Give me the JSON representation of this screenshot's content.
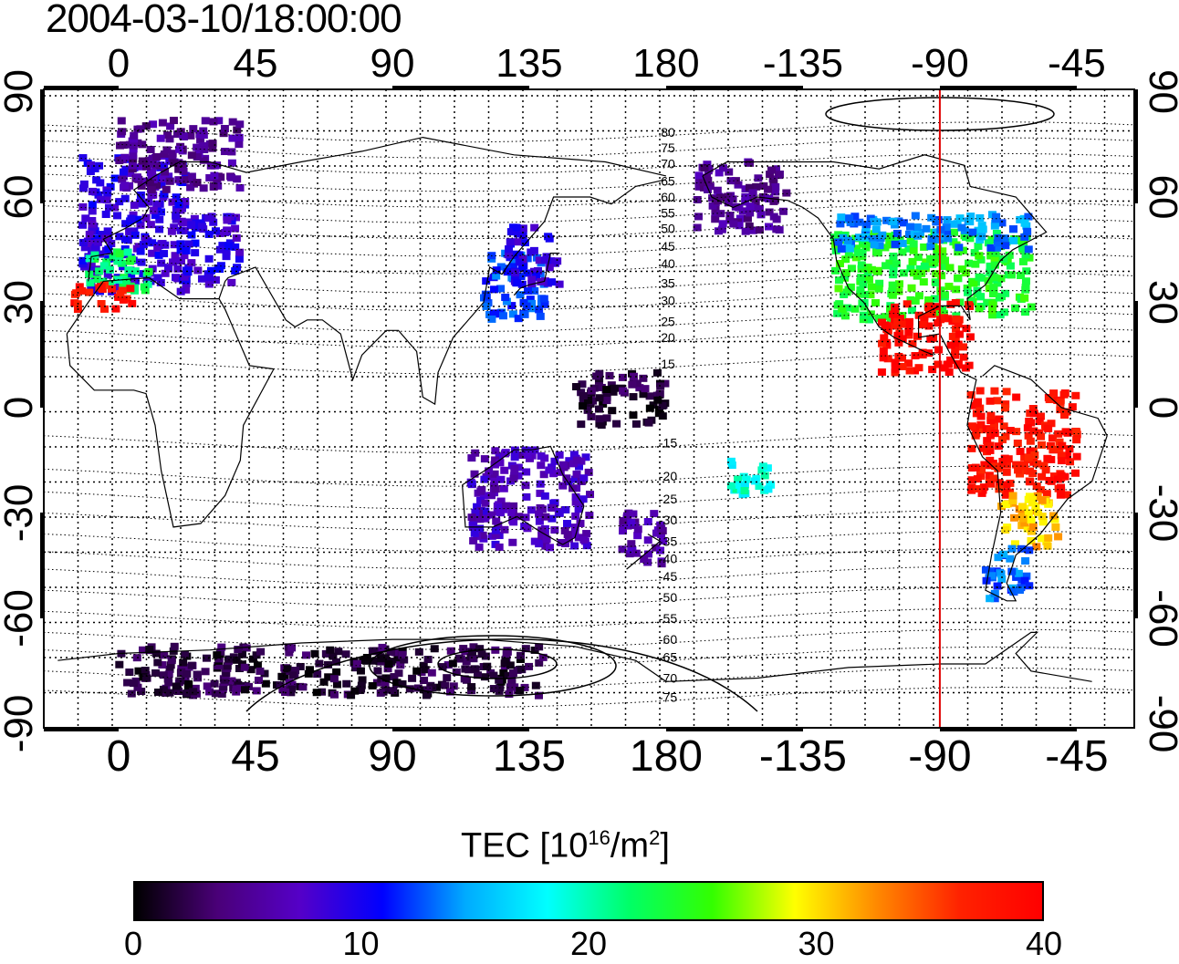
{
  "timestamp": "2004-03-10/18:00:00",
  "map": {
    "projection": "equirectangular",
    "central_longitude": 155,
    "lat_range": [
      -90,
      90
    ],
    "top_lon_labels": [
      "0",
      "45",
      "90",
      "135",
      "180",
      "-135",
      "-90",
      "-45"
    ],
    "bottom_lon_labels": [
      "0",
      "45",
      "90",
      "135",
      "180",
      "-135",
      "-90",
      "-45"
    ],
    "lon_tick_values": [
      0,
      45,
      90,
      135,
      180,
      225,
      270,
      315
    ],
    "lat_labels": [
      "90",
      "60",
      "30",
      "0",
      "-30",
      "-60",
      "-90"
    ],
    "lat_tick_values": [
      90,
      60,
      30,
      0,
      -30,
      -60,
      -90
    ],
    "meridian_line_lon": -90,
    "meridian_line_color": "#e00000",
    "contour_labels": [
      "80",
      "75",
      "70",
      "65",
      "60",
      "55",
      "50",
      "45",
      "40",
      "35",
      "30",
      "25",
      "20",
      "15",
      "-15",
      "-20",
      "-25",
      "-30",
      "-35",
      "-40",
      "-45",
      "-50",
      "-55",
      "-60",
      "-65",
      "-70",
      "-75"
    ],
    "contour_label_lats": [
      78.5,
      74,
      69.5,
      64.5,
      60,
      55.5,
      51,
      46,
      41,
      35.5,
      30.5,
      24.5,
      20,
      12.5,
      -10,
      -19.5,
      -26,
      -32,
      -38,
      -43,
      -48,
      -54,
      -60,
      -66,
      -71,
      -77,
      -82.5
    ]
  },
  "colorbar": {
    "title": "TEC  [10",
    "title_exp": "16",
    "title_unit": "/m",
    "title_unit_exp": "2",
    "title_close": "]",
    "min": 0,
    "max": 40,
    "tick_labels": [
      "0",
      "10",
      "20",
      "30",
      "40"
    ],
    "tick_values": [
      0,
      10,
      20,
      30,
      40
    ],
    "colormap": [
      "#000000",
      "#4a0078",
      "#5500c8",
      "#0000ff",
      "#00aaff",
      "#00ffff",
      "#00ff66",
      "#33ff00",
      "#ffff00",
      "#ff8800",
      "#ff2200",
      "#ff0000"
    ]
  },
  "chart_data": {
    "type": "heatmap",
    "variable": "TEC",
    "units": "10^16/m^2",
    "regions": [
      {
        "lon": [
          -12,
          22
        ],
        "lat": [
          33,
          72
        ],
        "tec": 9
      },
      {
        "lon": [
          -10,
          10
        ],
        "lat": [
          33,
          45
        ],
        "tec": 22
      },
      {
        "lon": [
          -15,
          5
        ],
        "lat": [
          28,
          35
        ],
        "tec": 38
      },
      {
        "lon": [
          20,
          40
        ],
        "lat": [
          35,
          55
        ],
        "tec": 9
      },
      {
        "lon": [
          0,
          40
        ],
        "lat": [
          62,
          82
        ],
        "tec": 5
      },
      {
        "lon": [
          120,
          140
        ],
        "lat": [
          25,
          45
        ],
        "tec": 12
      },
      {
        "lon": [
          128,
          145
        ],
        "lat": [
          35,
          52
        ],
        "tec": 9
      },
      {
        "lon": [
          -125,
          -60
        ],
        "lat": [
          25,
          50
        ],
        "tec": 24
      },
      {
        "lon": [
          -125,
          -60
        ],
        "lat": [
          45,
          55
        ],
        "tec": 14
      },
      {
        "lon": [
          -110,
          -80
        ],
        "lat": [
          10,
          30
        ],
        "tec": 39
      },
      {
        "lon": [
          -80,
          -45
        ],
        "lat": [
          -25,
          5
        ],
        "tec": 38
      },
      {
        "lon": [
          -70,
          -50
        ],
        "lat": [
          -40,
          -25
        ],
        "tec": 31
      },
      {
        "lon": [
          -75,
          -60
        ],
        "lat": [
          -55,
          -40
        ],
        "tec": 13
      },
      {
        "lon": [
          -170,
          -140
        ],
        "lat": [
          50,
          70
        ],
        "tec": 5
      },
      {
        "lon": [
          115,
          155
        ],
        "lat": [
          -40,
          -12
        ],
        "tec": 7
      },
      {
        "lon": [
          165,
          180
        ],
        "lat": [
          -45,
          -30
        ],
        "tec": 6
      },
      {
        "lon": [
          -160,
          -145
        ],
        "lat": [
          -25,
          -15
        ],
        "tec": 19
      },
      {
        "lon": [
          0,
          140
        ],
        "lat": [
          -82,
          -68
        ],
        "tec": 2
      },
      {
        "lon": [
          150,
          180
        ],
        "lat": [
          10,
          -5
        ],
        "tec": 2
      }
    ]
  }
}
